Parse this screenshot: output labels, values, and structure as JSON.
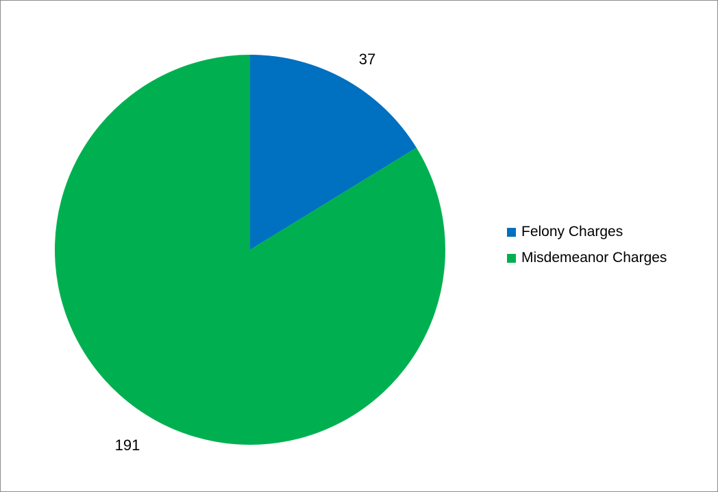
{
  "chart_data": {
    "type": "pie",
    "categories": [
      "Felony Charges",
      "Misdemeanor Charges"
    ],
    "values": [
      37,
      191
    ],
    "colors": [
      "#0070C0",
      "#00B050"
    ],
    "data_labels": [
      "37",
      "191"
    ],
    "start_angle_deg": 0,
    "direction": "clockwise",
    "legend_position": "right",
    "title": ""
  }
}
